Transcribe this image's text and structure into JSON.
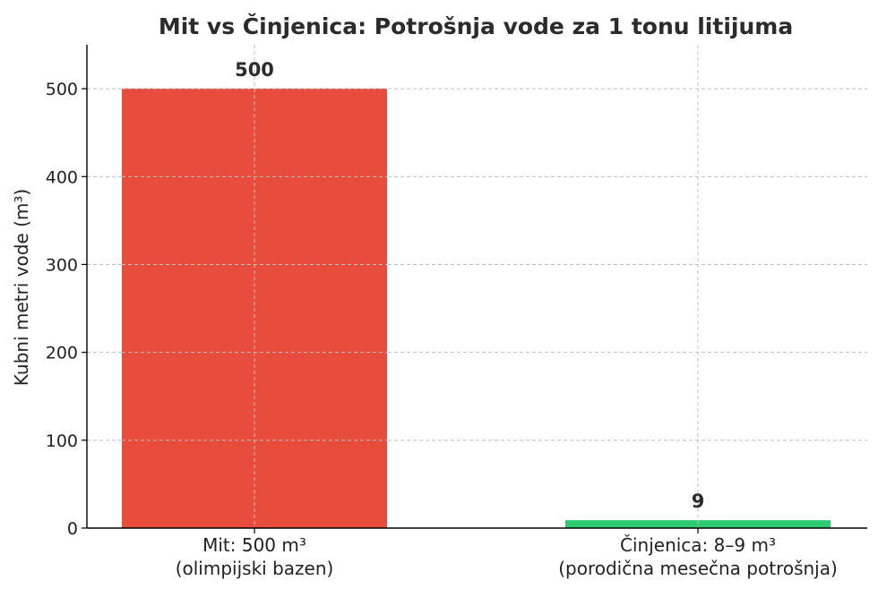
{
  "chart_data": {
    "type": "bar",
    "title": "Mit vs Činjenica: Potrošnja vode za 1 tonu litijuma",
    "ylabel": "Kubni metri vode (m³)",
    "xlabel": "",
    "ylim": [
      0,
      550
    ],
    "yticks": [
      0,
      100,
      200,
      300,
      400,
      500
    ],
    "grid": true,
    "categories": [
      [
        "Mit: 500 m³",
        "(olimpijski bazen)"
      ],
      [
        "Činjenica: 8–9 m³",
        "(porodična mesečna potrošnja)"
      ]
    ],
    "values": [
      500,
      9
    ],
    "data_labels": [
      "500",
      "9"
    ],
    "colors": [
      "#e74c3c",
      "#2ecc71"
    ]
  }
}
